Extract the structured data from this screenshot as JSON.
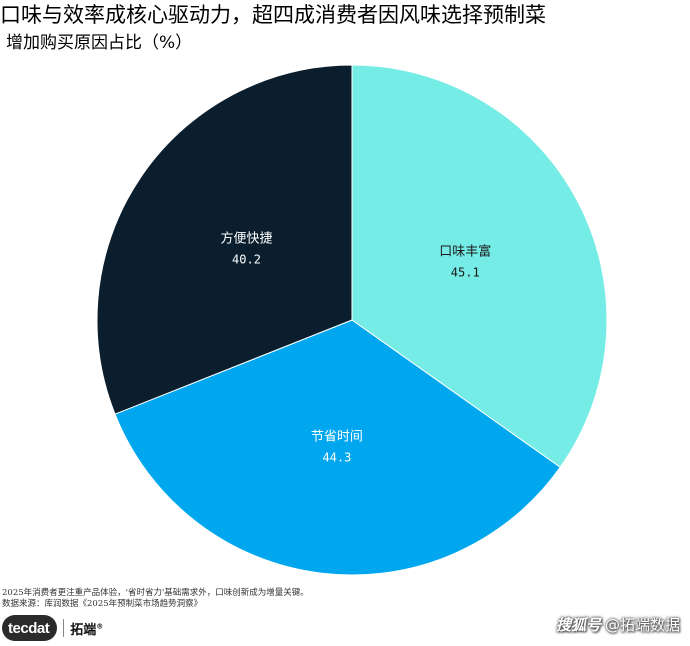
{
  "header": {
    "title": "口味与效率成核心驱动力，超四成消费者因风味选择预制菜",
    "subtitle": "增加购买原因占比（%）"
  },
  "chart_data": {
    "type": "pie",
    "title": "口味与效率成核心驱动力，超四成消费者因风味选择预制菜",
    "subtitle": "增加购买原因占比（%）",
    "categories": [
      "口味丰富",
      "节省时间",
      "方便快捷"
    ],
    "values": [
      45.1,
      44.3,
      40.2
    ],
    "value_labels": [
      "45.1",
      "44.3",
      "40.2"
    ],
    "colors": [
      "#76ECE6",
      "#00A7EF",
      "#0A1E2E"
    ],
    "label_colors": [
      "#1a1a1a",
      "#ffffff",
      "#ffffff"
    ],
    "start_angle": "12 o'clock",
    "direction": "clockwise",
    "legend": "none"
  },
  "footnotes": {
    "line1": "2025年消费者更注重产品体验，'省时省力'基础需求外，口味创新成为增量关键。",
    "line2": "数据来源：库润数据《2025年预制菜市场趋势洞察》"
  },
  "logo": {
    "part1": "tec",
    "part2": "dat",
    "cn": "拓端",
    "reg": "®"
  },
  "watermark": {
    "platform": "搜狐号",
    "account": "@拓端数据"
  }
}
